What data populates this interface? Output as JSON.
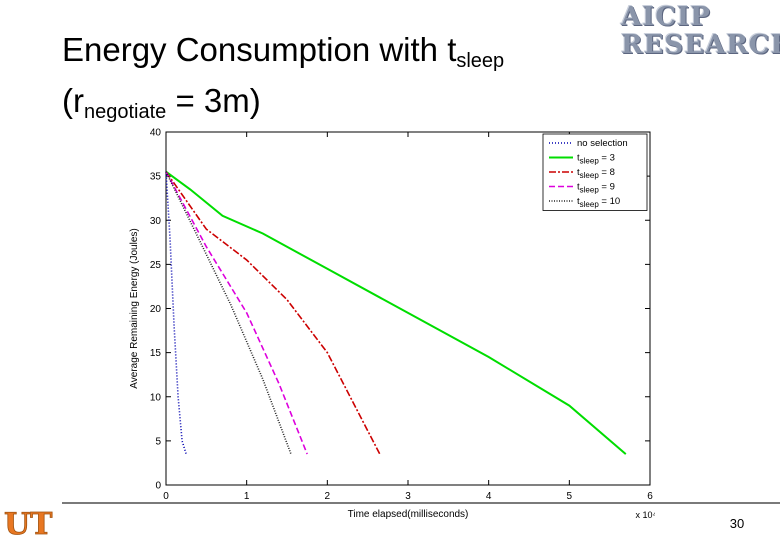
{
  "slide": {
    "title_main": "Energy Consumption with t",
    "title_main_sub": "sleep",
    "title_line2_pre": "(r",
    "title_line2_sub": "negotiate",
    "title_line2_post": " = 3m)",
    "logo_line1": "AICIP",
    "logo_line2": "RESEARCH",
    "ut_logo_text": "UT",
    "page_number": "30"
  },
  "colors": {
    "accent_logo": "#8a95aa",
    "ut_orange": "#e87722"
  },
  "chart_data": {
    "type": "line",
    "xlabel": "Time elapsed(milliseconds)",
    "ylabel": "Average Remaining Energy (Joules)",
    "x_exponent_label": "x 10⁴",
    "xlim": [
      0,
      6
    ],
    "ylim": [
      0,
      40
    ],
    "x_ticks": [
      "0",
      "1",
      "2",
      "3",
      "4",
      "5",
      "6"
    ],
    "y_ticks": [
      "0",
      "5",
      "10",
      "15",
      "20",
      "25",
      "30",
      "35",
      "40"
    ],
    "legend_position": "top-right",
    "series": [
      {
        "name": "no selection",
        "legend_pre": "no selection",
        "legend_sub": "",
        "legend_post": "",
        "color": "#0000b0",
        "dash": "1,2",
        "points": [
          [
            0,
            35.5
          ],
          [
            0.05,
            28
          ],
          [
            0.1,
            18
          ],
          [
            0.15,
            10
          ],
          [
            0.2,
            5
          ],
          [
            0.25,
            3.5
          ]
        ]
      },
      {
        "name": "t_sleep = 3",
        "legend_pre": "t",
        "legend_sub": "sleep",
        "legend_post": " = 3",
        "color": "#00dd00",
        "dash": "",
        "points": [
          [
            0,
            35.5
          ],
          [
            0.3,
            33.5
          ],
          [
            0.7,
            30.5
          ],
          [
            1.2,
            28.5
          ],
          [
            2.0,
            24.5
          ],
          [
            3.0,
            19.5
          ],
          [
            4.0,
            14.5
          ],
          [
            5.0,
            9
          ],
          [
            5.7,
            3.5
          ]
        ]
      },
      {
        "name": "t_sleep = 8",
        "legend_pre": "t",
        "legend_sub": "sleep",
        "legend_post": " = 8",
        "color": "#cc0000",
        "dash": "7,2,2,2",
        "points": [
          [
            0,
            35.5
          ],
          [
            0.5,
            29
          ],
          [
            1.0,
            25.5
          ],
          [
            1.5,
            21
          ],
          [
            2.0,
            15
          ],
          [
            2.65,
            3.5
          ]
        ]
      },
      {
        "name": "t_sleep = 9",
        "legend_pre": "t",
        "legend_sub": "sleep",
        "legend_post": " = 9",
        "color": "#dd00dd",
        "dash": "6,3",
        "points": [
          [
            0,
            35.5
          ],
          [
            0.5,
            27
          ],
          [
            1.0,
            19.5
          ],
          [
            1.4,
            11.5
          ],
          [
            1.75,
            3.5
          ]
        ]
      },
      {
        "name": "t_sleep = 10",
        "legend_pre": "t",
        "legend_sub": "sleep",
        "legend_post": " = 10",
        "color": "#222222",
        "dash": "1,1.5",
        "points": [
          [
            0,
            35.5
          ],
          [
            0.4,
            28
          ],
          [
            0.8,
            20.5
          ],
          [
            1.2,
            12
          ],
          [
            1.55,
            3.5
          ]
        ]
      }
    ]
  }
}
